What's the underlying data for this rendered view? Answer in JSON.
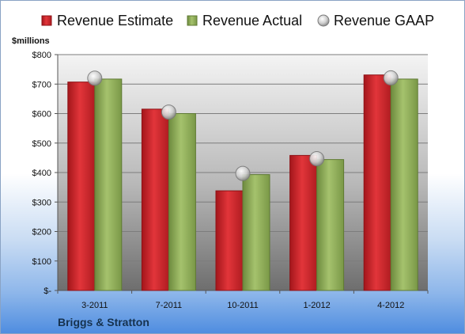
{
  "chart_data": {
    "type": "bar",
    "ylabel": "$millions",
    "ylim": [
      0,
      800
    ],
    "y_ticks": [
      0,
      100,
      200,
      300,
      400,
      500,
      600,
      700,
      800
    ],
    "y_tick_labels": [
      "$-",
      "$100",
      "$200",
      "$300",
      "$400",
      "$500",
      "$600",
      "$700",
      "$800"
    ],
    "categories": [
      "3-2011",
      "7-2011",
      "10-2011",
      "1-2012",
      "4-2012"
    ],
    "series": [
      {
        "name": "Revenue Estimate",
        "kind": "bar",
        "color": "#d0262c",
        "values": [
          707,
          615,
          338,
          458,
          731
        ]
      },
      {
        "name": "Revenue Actual",
        "kind": "bar",
        "color": "#8fac5a",
        "values": [
          717,
          600,
          393,
          444,
          717
        ]
      },
      {
        "name": "Revenue GAAP",
        "kind": "marker",
        "color": "#c8c8c8",
        "values": [
          720,
          605,
          397,
          447,
          721
        ]
      }
    ],
    "legend_position": "top",
    "grid": true
  },
  "footer": {
    "company": "Briggs & Stratton"
  }
}
